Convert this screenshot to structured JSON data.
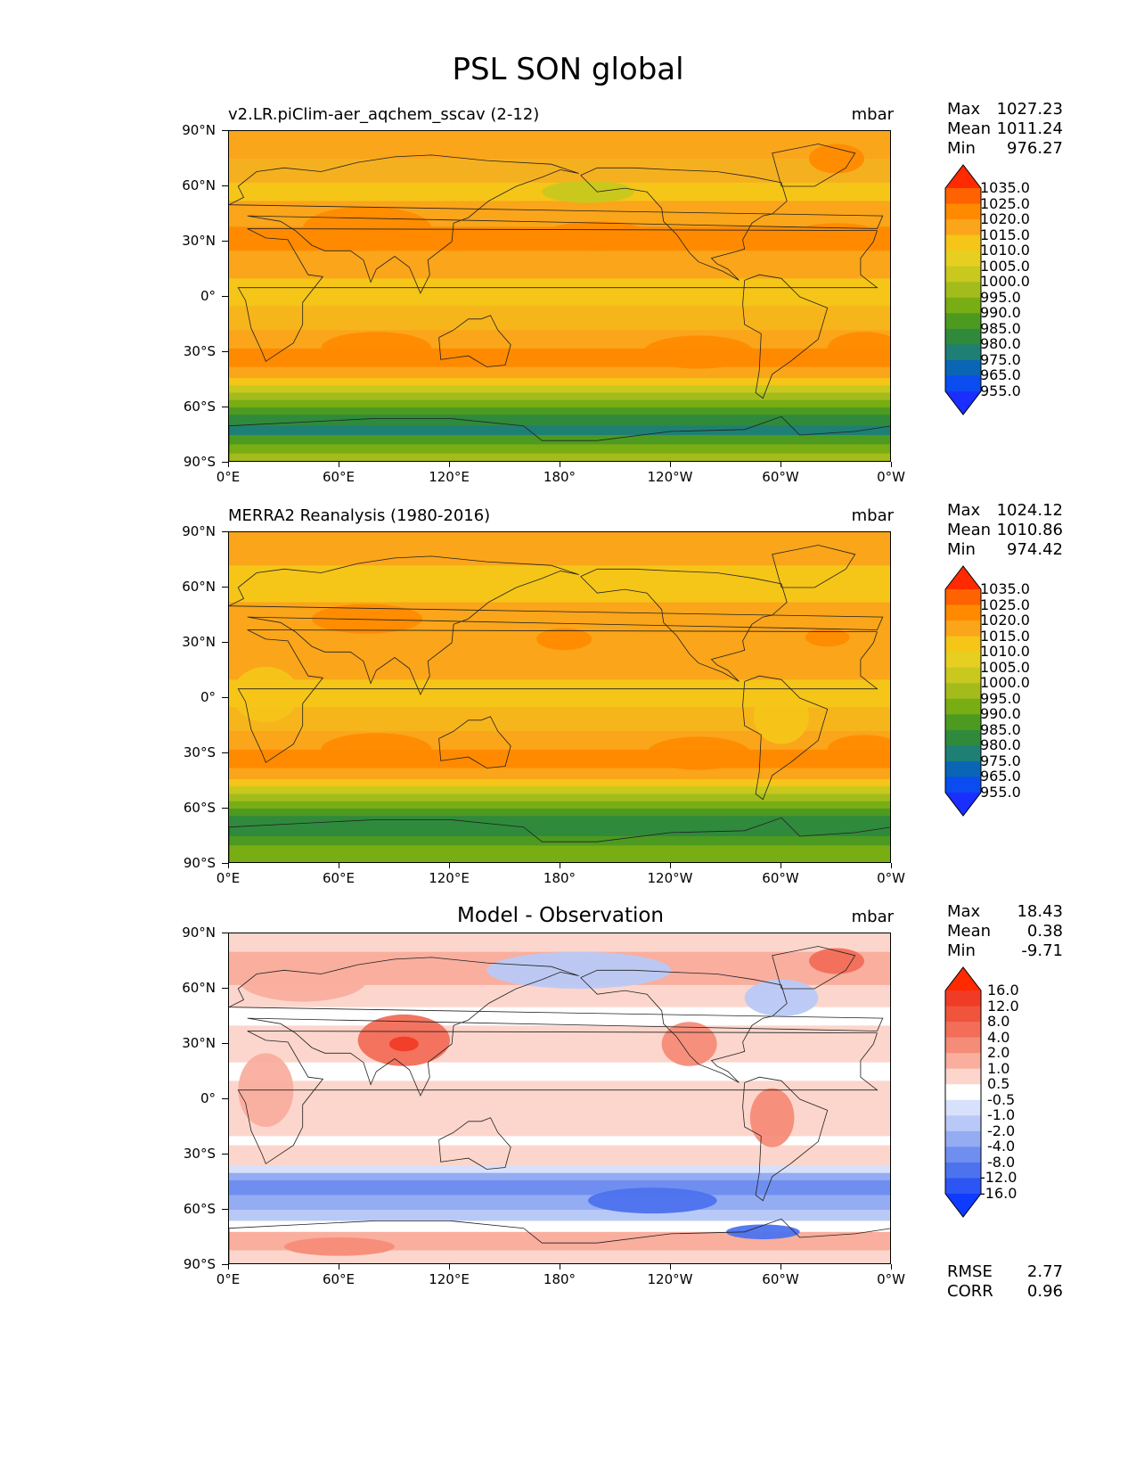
{
  "figure": {
    "title": "PSL SON global"
  },
  "axes": {
    "lat_ticks": [
      "90°N",
      "60°N",
      "30°N",
      "0°",
      "30°S",
      "60°S",
      "90°S"
    ],
    "lon_ticks": [
      "0°E",
      "60°E",
      "120°E",
      "180°",
      "120°W",
      "60°W",
      "0°W"
    ]
  },
  "panels": [
    {
      "title": "v2.LR.piClim-aer_aqchem_sscav (2-12)",
      "units": "mbar",
      "stats": [
        {
          "label": "Max",
          "value": "1027.23"
        },
        {
          "label": "Mean",
          "value": "1011.24"
        },
        {
          "label": "Min",
          "value": "976.27"
        }
      ],
      "colorbar": {
        "labels": [
          "1035.0",
          "1025.0",
          "1020.0",
          "1015.0",
          "1010.0",
          "1005.0",
          "1000.0",
          "995.0",
          "990.0",
          "985.0",
          "980.0",
          "975.0",
          "965.0",
          "955.0"
        ],
        "colors": [
          "#ff2a00",
          "#ff6200",
          "#ff8a00",
          "#faa51a",
          "#f5c518",
          "#e6cf20",
          "#c8c81e",
          "#a3bc1c",
          "#78ad14",
          "#4d9a20",
          "#2f8a3c",
          "#1e7f74",
          "#0a66b4",
          "#0a4cf0",
          "#1a2fff"
        ]
      },
      "bands": [
        {
          "lat": 90,
          "color": "#faa51a"
        },
        {
          "lat": 75,
          "color": "#f5b020"
        },
        {
          "lat": 62,
          "color": "#f5c518"
        },
        {
          "lat": 52,
          "color": "#faa51a"
        },
        {
          "lat": 38,
          "color": "#ff8a00"
        },
        {
          "lat": 25,
          "color": "#faa51a"
        },
        {
          "lat": 10,
          "color": "#f5c518"
        },
        {
          "lat": -5,
          "color": "#f7b51c"
        },
        {
          "lat": -18,
          "color": "#faa51a"
        },
        {
          "lat": -28,
          "color": "#ff8a00"
        },
        {
          "lat": -38,
          "color": "#faa51a"
        },
        {
          "lat": -44,
          "color": "#f5c518"
        },
        {
          "lat": -48,
          "color": "#c8c81e"
        },
        {
          "lat": -52,
          "color": "#a3bc1c"
        },
        {
          "lat": -56,
          "color": "#78ad14"
        },
        {
          "lat": -60,
          "color": "#4d9a20"
        },
        {
          "lat": -64,
          "color": "#2f8a3c"
        },
        {
          "lat": -70,
          "color": "#1e7f74"
        },
        {
          "lat": -75,
          "color": "#4d9a20"
        },
        {
          "lat": -80,
          "color": "#78ad14"
        },
        {
          "lat": -85,
          "color": "#a3bc1c"
        }
      ],
      "blobs": [
        {
          "lon": 75,
          "lat": 37,
          "rx": 35,
          "ry": 12,
          "color": "#ff8a00"
        },
        {
          "lon": 200,
          "lat": 33,
          "rx": 30,
          "ry": 8,
          "color": "#ff8a00"
        },
        {
          "lon": 330,
          "lat": 33,
          "rx": 25,
          "ry": 7,
          "color": "#ff8a00"
        },
        {
          "lon": 80,
          "lat": -28,
          "rx": 30,
          "ry": 9,
          "color": "#ff8a00"
        },
        {
          "lon": 255,
          "lat": -30,
          "rx": 30,
          "ry": 9,
          "color": "#ff8a00"
        },
        {
          "lon": 345,
          "lat": -28,
          "rx": 20,
          "ry": 9,
          "color": "#ff8a00"
        },
        {
          "lon": 195,
          "lat": 57,
          "rx": 25,
          "ry": 6,
          "color": "#c8c81e"
        },
        {
          "lon": 330,
          "lat": 75,
          "rx": 15,
          "ry": 8,
          "color": "#ff8a00"
        }
      ]
    },
    {
      "title": "MERRA2 Reanalysis (1980-2016)",
      "units": "mbar",
      "stats": [
        {
          "label": "Max",
          "value": "1024.12"
        },
        {
          "label": "Mean",
          "value": "1010.86"
        },
        {
          "label": "Min",
          "value": "974.42"
        }
      ],
      "colorbar": {
        "labels": [
          "1035.0",
          "1025.0",
          "1020.0",
          "1015.0",
          "1010.0",
          "1005.0",
          "1000.0",
          "995.0",
          "990.0",
          "985.0",
          "980.0",
          "975.0",
          "965.0",
          "955.0"
        ],
        "colors": [
          "#ff2a00",
          "#ff6200",
          "#ff8a00",
          "#faa51a",
          "#f5c518",
          "#e6cf20",
          "#c8c81e",
          "#a3bc1c",
          "#78ad14",
          "#4d9a20",
          "#2f8a3c",
          "#1e7f74",
          "#0a66b4",
          "#0a4cf0",
          "#1a2fff"
        ]
      },
      "bands": [
        {
          "lat": 90,
          "color": "#faa51a"
        },
        {
          "lat": 72,
          "color": "#f5c518"
        },
        {
          "lat": 62,
          "color": "#f5c518"
        },
        {
          "lat": 52,
          "color": "#faa51a"
        },
        {
          "lat": 40,
          "color": "#faa51a"
        },
        {
          "lat": 25,
          "color": "#faa51a"
        },
        {
          "lat": 10,
          "color": "#f5c518"
        },
        {
          "lat": -5,
          "color": "#f7b51c"
        },
        {
          "lat": -18,
          "color": "#faa51a"
        },
        {
          "lat": -28,
          "color": "#ff8a00"
        },
        {
          "lat": -38,
          "color": "#faa51a"
        },
        {
          "lat": -44,
          "color": "#f5c518"
        },
        {
          "lat": -48,
          "color": "#c8c81e"
        },
        {
          "lat": -52,
          "color": "#a3bc1c"
        },
        {
          "lat": -56,
          "color": "#78ad14"
        },
        {
          "lat": -60,
          "color": "#4d9a20"
        },
        {
          "lat": -64,
          "color": "#2f8a3c"
        },
        {
          "lat": -70,
          "color": "#2f8a3c"
        },
        {
          "lat": -75,
          "color": "#4d9a20"
        },
        {
          "lat": -80,
          "color": "#78ad14"
        },
        {
          "lat": -85,
          "color": "#78ad14"
        }
      ],
      "blobs": [
        {
          "lon": 75,
          "lat": 43,
          "rx": 30,
          "ry": 8,
          "color": "#ff8a00"
        },
        {
          "lon": 182,
          "lat": 32,
          "rx": 15,
          "ry": 6,
          "color": "#ff8a00"
        },
        {
          "lon": 325,
          "lat": 33,
          "rx": 12,
          "ry": 5,
          "color": "#ff8a00"
        },
        {
          "lon": 80,
          "lat": -28,
          "rx": 30,
          "ry": 9,
          "color": "#ff8a00"
        },
        {
          "lon": 255,
          "lat": -30,
          "rx": 28,
          "ry": 9,
          "color": "#ff8a00"
        },
        {
          "lon": 345,
          "lat": -28,
          "rx": 20,
          "ry": 8,
          "color": "#ff8a00"
        },
        {
          "lon": 20,
          "lat": 2,
          "rx": 18,
          "ry": 15,
          "color": "#f5c518"
        },
        {
          "lon": 300,
          "lat": -10,
          "rx": 15,
          "ry": 15,
          "color": "#f5c518"
        }
      ]
    },
    {
      "title": "Model - Observation",
      "units": "mbar",
      "stats": [
        {
          "label": "Max",
          "value": "18.43"
        },
        {
          "label": "Mean",
          "value": "0.38"
        },
        {
          "label": "Min",
          "value": "-9.71"
        }
      ],
      "colorbar": {
        "labels": [
          "16.0",
          "12.0",
          "8.0",
          "4.0",
          "2.0",
          "1.0",
          "0.5",
          "-0.5",
          "-1.0",
          "-2.0",
          "-4.0",
          "-8.0",
          "-12.0",
          "-16.0"
        ],
        "colors": [
          "#ff2a00",
          "#f03c26",
          "#f0543d",
          "#f26e58",
          "#f58c78",
          "#f9ae9e",
          "#fcd6cc",
          "#ffffff",
          "#d8e1fb",
          "#b9c9f7",
          "#93acf2",
          "#6f8ef0",
          "#4c72ee",
          "#2c55f3",
          "#0f3aff"
        ]
      },
      "metrics": [
        {
          "label": "RMSE",
          "value": "2.77"
        },
        {
          "label": "CORR",
          "value": "0.96"
        }
      ],
      "bands": [
        {
          "lat": 90,
          "color": "#fcd6cc"
        },
        {
          "lat": 80,
          "color": "#f9ae9e"
        },
        {
          "lat": 62,
          "color": "#fcd6cc"
        },
        {
          "lat": 50,
          "color": "#ffffff"
        },
        {
          "lat": 40,
          "color": "#fcd6cc"
        },
        {
          "lat": 20,
          "color": "#ffffff"
        },
        {
          "lat": 10,
          "color": "#fcd6cc"
        },
        {
          "lat": -20,
          "color": "#ffffff"
        },
        {
          "lat": -25,
          "color": "#fcd6cc"
        },
        {
          "lat": -36,
          "color": "#d8e1fb"
        },
        {
          "lat": -40,
          "color": "#93acf2"
        },
        {
          "lat": -44,
          "color": "#6f8ef0"
        },
        {
          "lat": -52,
          "color": "#93acf2"
        },
        {
          "lat": -60,
          "color": "#b9c9f7"
        },
        {
          "lat": -66,
          "color": "#ffffff"
        },
        {
          "lat": -72,
          "color": "#f9ae9e"
        },
        {
          "lat": -82,
          "color": "#fcd6cc"
        }
      ],
      "blobs": [
        {
          "lon": 95,
          "lat": 32,
          "rx": 25,
          "ry": 14,
          "color": "#f26e58"
        },
        {
          "lon": 95,
          "lat": 30,
          "rx": 8,
          "ry": 4,
          "color": "#f03c26"
        },
        {
          "lon": 40,
          "lat": 65,
          "rx": 35,
          "ry": 12,
          "color": "#f9ae9e"
        },
        {
          "lon": 190,
          "lat": 70,
          "rx": 50,
          "ry": 10,
          "color": "#b9c9f7"
        },
        {
          "lon": 300,
          "lat": 55,
          "rx": 20,
          "ry": 10,
          "color": "#b9c9f7"
        },
        {
          "lon": 330,
          "lat": 75,
          "rx": 15,
          "ry": 7,
          "color": "#f26e58"
        },
        {
          "lon": 250,
          "lat": 30,
          "rx": 15,
          "ry": 12,
          "color": "#f58c78"
        },
        {
          "lon": 295,
          "lat": -10,
          "rx": 12,
          "ry": 16,
          "color": "#f58c78"
        },
        {
          "lon": 20,
          "lat": 5,
          "rx": 15,
          "ry": 20,
          "color": "#f9ae9e"
        },
        {
          "lon": 230,
          "lat": -55,
          "rx": 35,
          "ry": 7,
          "color": "#4c72ee"
        },
        {
          "lon": 60,
          "lat": -80,
          "rx": 30,
          "ry": 5,
          "color": "#f58c78"
        },
        {
          "lon": 290,
          "lat": -72,
          "rx": 20,
          "ry": 4,
          "color": "#4c72ee"
        }
      ]
    }
  ]
}
